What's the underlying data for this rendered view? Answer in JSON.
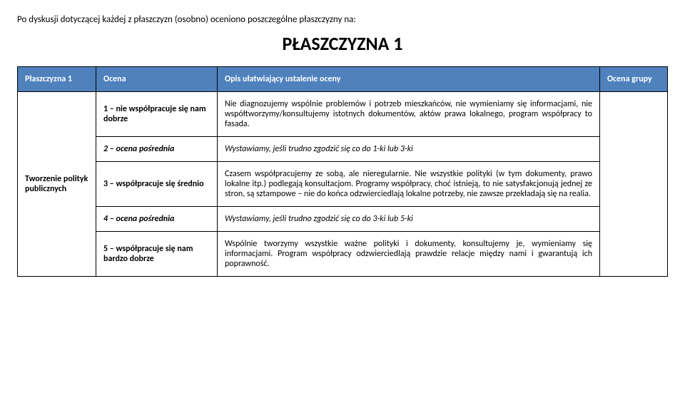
{
  "intro": "Po dyskusji dotyczącej każdej z płaszczyzn (osobno) oceniono poszczególne płaszczyzny na:",
  "title": "PŁASZCZYZNA 1",
  "colors": {
    "header_bg": "#4f81bd",
    "header_fg": "#ffffff",
    "border": "#000000",
    "page_bg": "#ffffff",
    "text": "#000000"
  },
  "table": {
    "headers": {
      "c1": "Płaszczyzna 1",
      "c2": "Ocena",
      "c3": "Opis ułatwiający ustalenie oceny",
      "c4": "Ocena grupy"
    },
    "row_label": "Tworzenie polityk publicznych",
    "rows": [
      {
        "score": "1 – nie współpracuje się nam dobrze",
        "desc": "Nie diagnozujemy wspólnie problemów i potrzeb mieszkańców, nie wymieniamy się informacjami, nie współtworzymy/konsultujemy istotnych dokumentów, aktów prawa lokalnego, program współpracy to fasada.",
        "italic": false
      },
      {
        "score": "2 – ocena pośrednia",
        "desc": "Wystawiamy, jeśli trudno zgodzić się co do 1-ki lub 3-ki",
        "italic": true
      },
      {
        "score": "3 – współpracuje się średnio",
        "desc": "Czasem współpracujemy ze sobą, ale nieregularnie. Nie wszystkie polityki (w tym dokumenty, prawo lokalne itp.) podlegają konsultacjom. Programy współpracy, choć istnieją, to nie satysfakcjonują jednej ze stron, są sztampowe – nie do końca odzwierciedlają lokalne potrzeby, nie zawsze przekładają się na realia.",
        "italic": false
      },
      {
        "score": "4 – ocena pośrednia",
        "desc": "Wystawiamy, jeśli trudno zgodzić się co do 3-ki lub 5-ki",
        "italic": true
      },
      {
        "score": "5 – współpracuje się nam bardzo dobrze",
        "desc": "Wspólnie tworzymy wszystkie ważne polityki i dokumenty, konsultujemy je, wymieniamy się informacjami. Program współpracy odzwierciedlają prawdzie relacje między nami i gwarantują ich poprawność.",
        "italic": false
      }
    ]
  }
}
